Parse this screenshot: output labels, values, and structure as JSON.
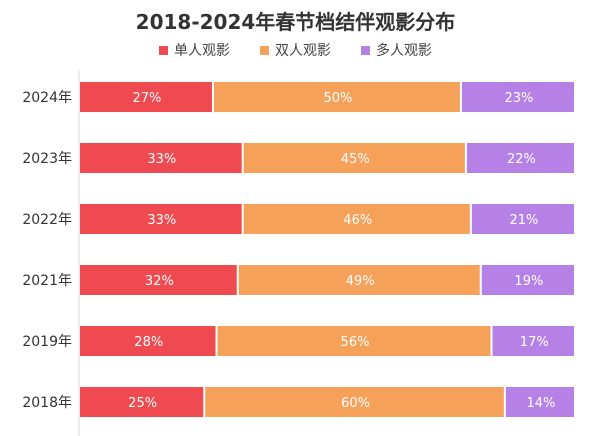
{
  "chart_data": {
    "type": "bar",
    "orientation": "horizontal",
    "stacked": true,
    "title": "2018-2024年春节档结伴观影分布",
    "categories": [
      "2024年",
      "2023年",
      "2022年",
      "2021年",
      "2019年",
      "2018年"
    ],
    "series": [
      {
        "name": "单人观影",
        "color": "#ee4a50",
        "values": [
          27,
          33,
          33,
          32,
          28,
          25
        ]
      },
      {
        "name": "双人观影",
        "color": "#f5a15a",
        "values": [
          50,
          45,
          46,
          49,
          56,
          60
        ]
      },
      {
        "name": "多人观影",
        "color": "#b681e6",
        "values": [
          23,
          22,
          21,
          19,
          17,
          14
        ]
      }
    ],
    "value_suffix": "%",
    "legend_position": "top-center",
    "grid": false
  }
}
